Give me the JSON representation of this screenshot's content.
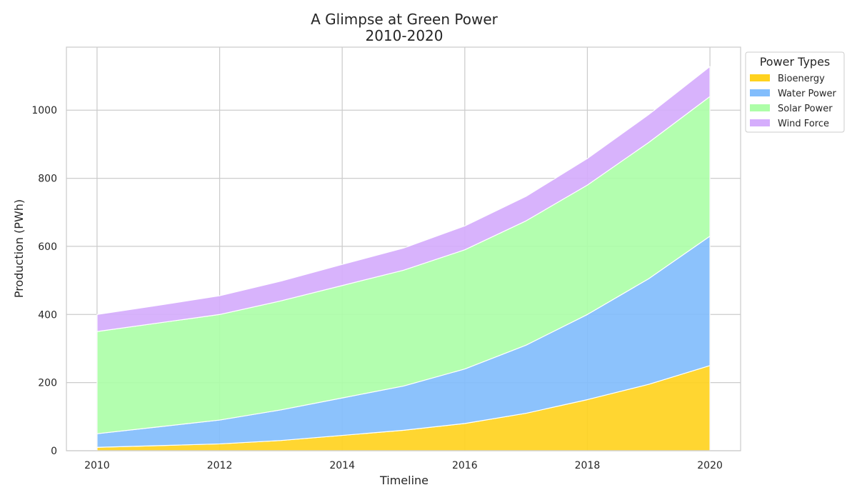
{
  "chart_data": {
    "type": "area",
    "stacked": true,
    "title": "A Glimpse at Green Power",
    "subtitle": "2010-2020",
    "xlabel": "Timeline",
    "ylabel": "Production (PWh)",
    "x": [
      2010,
      2011,
      2012,
      2013,
      2014,
      2015,
      2016,
      2017,
      2018,
      2019,
      2020
    ],
    "xticks": [
      "2010",
      "2012",
      "2014",
      "2016",
      "2018",
      "2020"
    ],
    "yticks": [
      "0",
      "200",
      "400",
      "600",
      "800",
      "1000"
    ],
    "xlim": [
      2009.5,
      2020.5
    ],
    "ylim": [
      0,
      1185
    ],
    "grid": true,
    "legend": {
      "title": "Power Types",
      "placement": "outside-top-right"
    },
    "series": [
      {
        "name": "Bioenergy",
        "color": "#ffd21f",
        "values": [
          10,
          15,
          20,
          30,
          45,
          60,
          80,
          110,
          150,
          195,
          250
        ]
      },
      {
        "name": "Water Power",
        "color": "#82bdfc",
        "values": [
          40,
          55,
          70,
          90,
          110,
          130,
          160,
          200,
          250,
          310,
          380
        ]
      },
      {
        "name": "Solar Power",
        "color": "#adfea8",
        "values": [
          300,
          305,
          310,
          320,
          330,
          340,
          350,
          365,
          380,
          400,
          410
        ]
      },
      {
        "name": "Wind Force",
        "color": "#d5adfc",
        "values": [
          50,
          52,
          55,
          58,
          62,
          65,
          70,
          72,
          78,
          82,
          88
        ]
      }
    ]
  }
}
